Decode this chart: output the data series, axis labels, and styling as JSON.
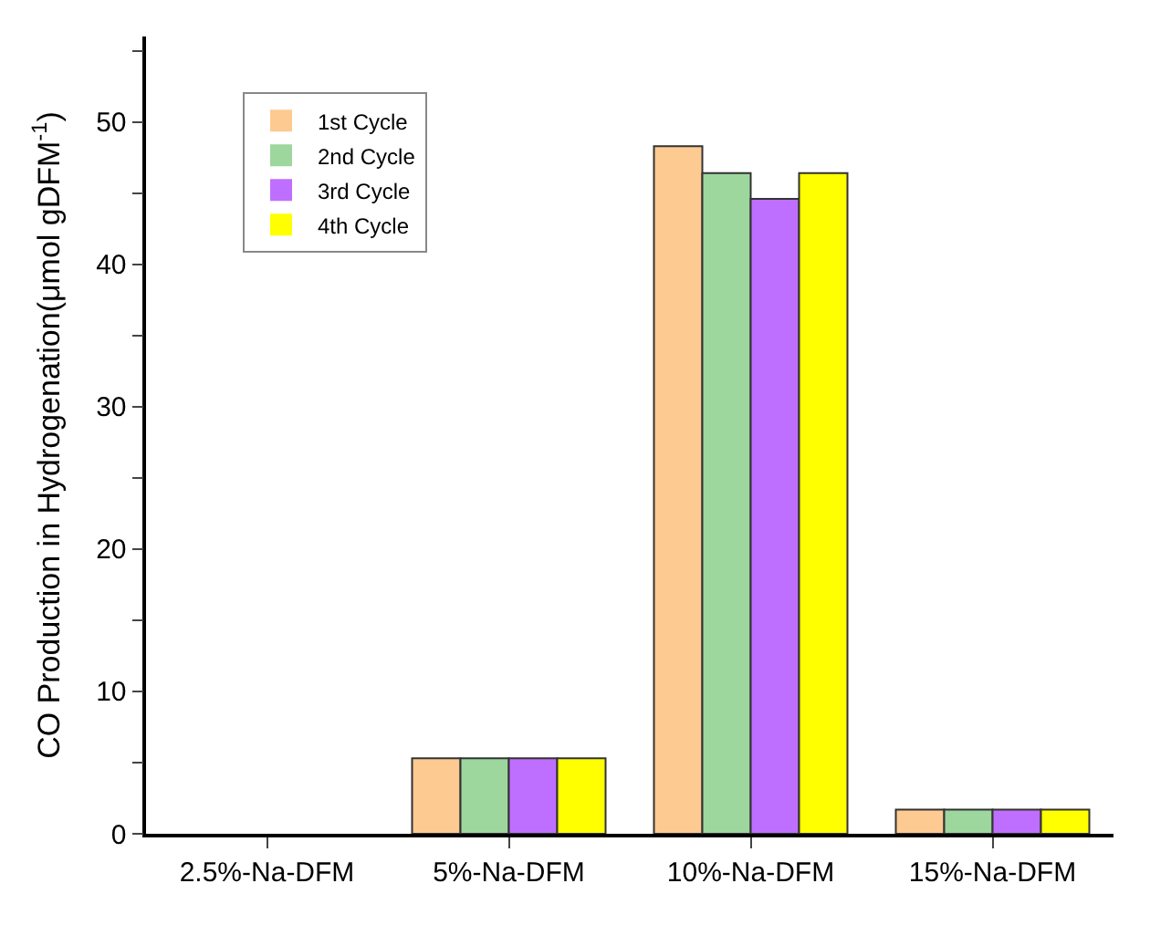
{
  "chart_data": {
    "type": "bar",
    "ylabel": "CO Production in Hydrogenation(μmol gDFM$^{-1}$)",
    "categories": [
      "2.5%-Na-DFM",
      "5%-Na-DFM",
      "10%-Na-DFM",
      "15%-Na-DFM"
    ],
    "series": [
      {
        "name": "1st Cycle",
        "color": "#fdca92",
        "values": [
          0,
          5.3,
          48.3,
          1.7
        ]
      },
      {
        "name": "2nd Cycle",
        "color": "#9dd79d",
        "values": [
          0,
          5.3,
          46.4,
          1.7
        ]
      },
      {
        "name": "3rd Cycle",
        "color": "#bf6fff",
        "values": [
          0,
          5.3,
          44.6,
          1.7
        ]
      },
      {
        "name": "4th Cycle",
        "color": "#ffff00",
        "values": [
          0,
          5.3,
          46.4,
          1.7
        ]
      }
    ],
    "ylim": [
      0,
      56
    ],
    "yticks": [
      0,
      {
        "value": 5,
        "label": null
      },
      10,
      {
        "value": 15,
        "label": null
      },
      20,
      {
        "value": 25,
        "label": null
      },
      30,
      {
        "value": 35,
        "label": null
      },
      40,
      {
        "value": 45,
        "label": null
      },
      50,
      {
        "value": 55,
        "label": null
      }
    ],
    "legend": "top left"
  }
}
